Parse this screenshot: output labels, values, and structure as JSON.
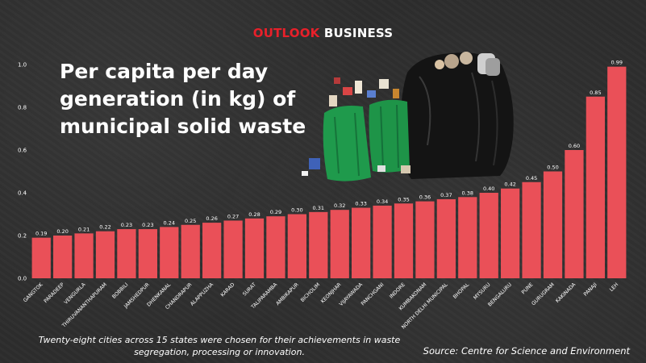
{
  "brand": {
    "part1": "OUTLOOK",
    "part2": "BUSINESS"
  },
  "title": "Per capita per day generation (in kg) of municipal solid waste",
  "footnote": "Twenty-eight cities across 15 states were chosen for their achievements in waste segregation, processing or innovation.",
  "source": "Source: Centre for Science and Environment",
  "colors": {
    "bar": "#ea5058",
    "brand_accent": "#e8202a",
    "background": "#2d2d2d"
  },
  "illustration": {
    "name": "garbage-bags-illustration"
  },
  "chart_data": {
    "type": "bar",
    "categories": [
      "GANGTOK",
      "PARADEEP",
      "VENGURLA",
      "THIRUVANANTHAPURAM",
      "BOBBILI",
      "JAMSHEDPUR",
      "DHENKANAL",
      "CHANDRAPUR",
      "ALAPPUZHA",
      "KARAD",
      "SURAT",
      "TALIPARAMBA",
      "AMBIKAPUR",
      "BICHOLIM",
      "KEONJHAR",
      "VIJAYAWADA",
      "PANCHGANI",
      "INDORE",
      "KUMBAKONAM",
      "NORTH DELHI MUNICIPAL",
      "BHOPAL",
      "MYSURU",
      "BENGALURU",
      "PUNE",
      "GURUGRAM",
      "KAKINADA",
      "PANAJI",
      "LEH"
    ],
    "values": [
      0.19,
      0.2,
      0.21,
      0.22,
      0.23,
      0.23,
      0.24,
      0.25,
      0.26,
      0.27,
      0.28,
      0.29,
      0.3,
      0.31,
      0.32,
      0.33,
      0.34,
      0.35,
      0.36,
      0.37,
      0.38,
      0.4,
      0.42,
      0.45,
      0.5,
      0.6,
      0.85,
      0.99
    ],
    "value_labels": [
      "0.19",
      "0.20",
      "0.21",
      "0.22",
      "0.23",
      "0.23",
      "0.24",
      "0.25",
      "0.26",
      "0.27",
      "0.28",
      "0.29",
      "0.30",
      "0.31",
      "0.32",
      "0.33",
      "0.34",
      "0.35",
      "0.36",
      "0.37",
      "0.38",
      "0.40",
      "0.42",
      "0.45",
      "0.50",
      "0.60",
      "0.85",
      "0.99"
    ],
    "yticks": [
      "0.0",
      "0.2",
      "0.4",
      "0.6",
      "0.8",
      "1.0"
    ],
    "ylim": [
      0,
      1.0
    ],
    "grid": false,
    "xlabel": "",
    "ylabel": ""
  }
}
